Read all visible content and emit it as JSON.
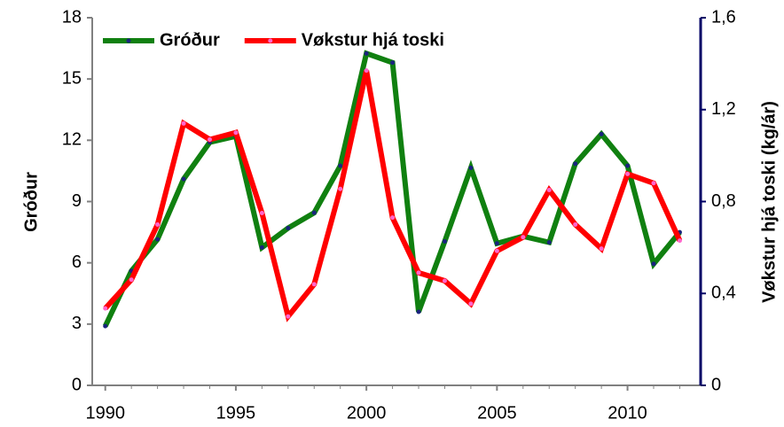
{
  "chart_data": {
    "type": "line",
    "x": [
      1990,
      1991,
      1992,
      1993,
      1994,
      1995,
      1996,
      1997,
      1998,
      1999,
      2000,
      2001,
      2002,
      2003,
      2004,
      2005,
      2006,
      2007,
      2008,
      2009,
      2010,
      2011,
      2012
    ],
    "series": [
      {
        "name": "Gróður",
        "color": "#108010",
        "marker_color": "#1a237e",
        "values": [
          2.9,
          5.6,
          7.15,
          10.1,
          11.9,
          12.2,
          6.75,
          7.7,
          8.45,
          10.75,
          16.25,
          15.8,
          3.6,
          7.05,
          10.65,
          6.95,
          7.3,
          7.0,
          10.85,
          12.3,
          10.75,
          5.95,
          7.5
        ]
      },
      {
        "name": "Vøkstur hjá toski",
        "color": "#ff0000",
        "marker_color": "#ff66cc",
        "axis": "y2",
        "values": [
          0.335,
          0.46,
          0.7,
          1.14,
          1.07,
          1.1,
          0.75,
          0.3,
          0.44,
          0.855,
          1.37,
          0.73,
          0.49,
          0.455,
          0.355,
          0.585,
          0.645,
          0.85,
          0.7,
          0.595,
          0.92,
          0.88,
          0.63
        ]
      }
    ],
    "ylabel": "Gróður",
    "y2label": "Vøkstur hjá toski (kg/ár)",
    "xlim": [
      1989.5,
      2012.8
    ],
    "xticks": [
      1990,
      1995,
      2000,
      2005,
      2010
    ],
    "ylim": [
      0,
      18
    ],
    "yticks": [
      0,
      3,
      6,
      9,
      12,
      15,
      18
    ],
    "y2lim": [
      0,
      1.6
    ],
    "y2ticks": [
      0,
      {
        "value": 0.4,
        "label": "0,4"
      },
      {
        "value": 0.8,
        "label": "0,8"
      },
      {
        "value": 1.2,
        "label": "1,2"
      },
      {
        "value": 1.6,
        "label": "1,6"
      }
    ],
    "legend": "upper left"
  }
}
